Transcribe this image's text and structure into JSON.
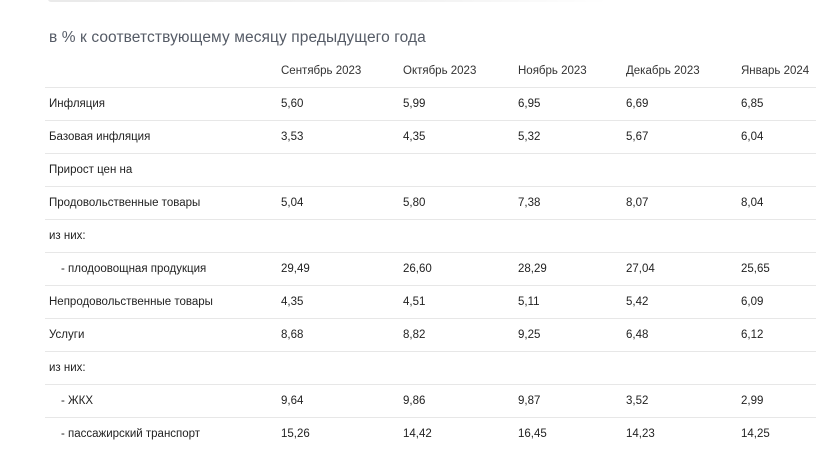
{
  "subtitle": "в % к соответствующему месяцу предыдущего года",
  "table": {
    "headers": [
      "",
      "Сентябрь 2023",
      "Октябрь 2023",
      "Ноябрь 2023",
      "Декабрь 2023",
      "Январь 2024"
    ],
    "rows": [
      {
        "label": "Инфляция",
        "values": [
          "5,60",
          "5,99",
          "6,95",
          "6,69",
          "6,85"
        ]
      },
      {
        "label": "Базовая инфляция",
        "values": [
          "3,53",
          "4,35",
          "5,32",
          "5,67",
          "6,04"
        ]
      },
      {
        "label": "Прирост цен на",
        "values": [
          "",
          "",
          "",
          "",
          ""
        ]
      },
      {
        "label": "Продовольственные товары",
        "values": [
          "5,04",
          "5,80",
          "7,38",
          "8,07",
          "8,04"
        ]
      },
      {
        "label": "из них:",
        "values": [
          "",
          "",
          "",
          "",
          ""
        ]
      },
      {
        "label": "- плодоовощная продукция",
        "values": [
          "29,49",
          "26,60",
          "28,29",
          "27,04",
          "25,65"
        ]
      },
      {
        "label": "Непродовольственные товары",
        "values": [
          "4,35",
          "4,51",
          "5,11",
          "5,42",
          "6,09"
        ]
      },
      {
        "label": "Услуги",
        "values": [
          "8,68",
          "8,82",
          "9,25",
          "6,48",
          "6,12"
        ]
      },
      {
        "label": "из них:",
        "values": [
          "",
          "",
          "",
          "",
          ""
        ]
      },
      {
        "label": "- ЖКХ",
        "values": [
          "9,64",
          "9,86",
          "9,87",
          "3,52",
          "2,99"
        ]
      },
      {
        "label": "- пассажирский транспорт",
        "values": [
          "15,26",
          "14,42",
          "16,45",
          "14,23",
          "14,25"
        ]
      }
    ]
  }
}
